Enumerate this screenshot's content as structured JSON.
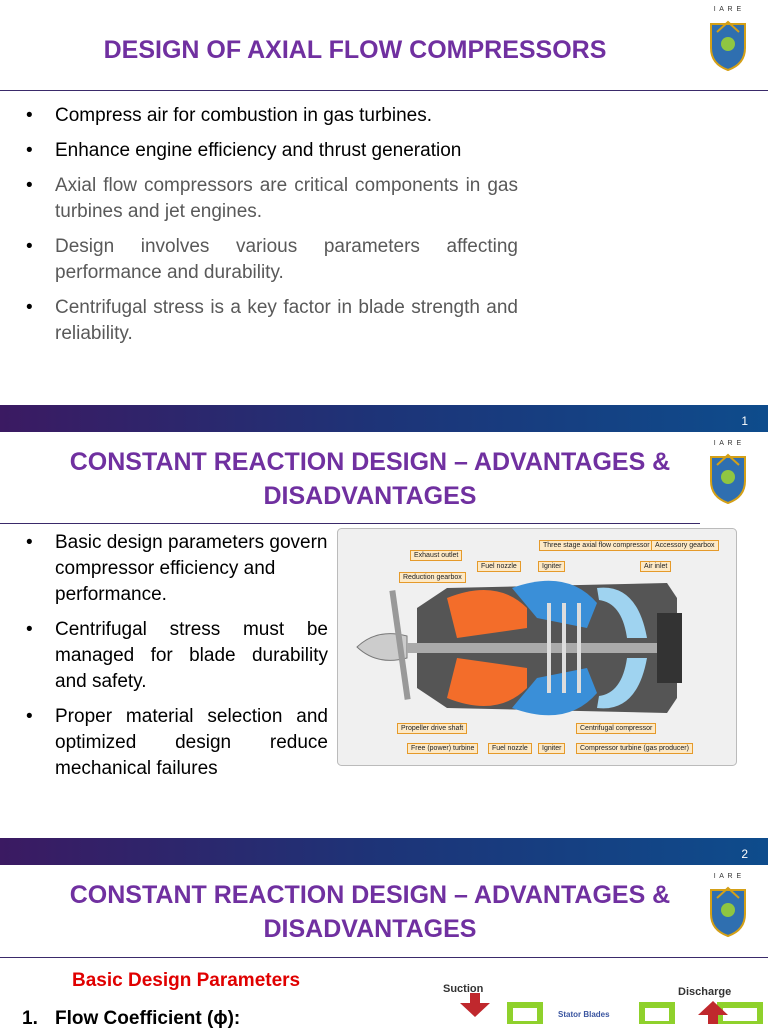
{
  "slides": [
    {
      "title": "DESIGN OF AXIAL FLOW COMPRESSORS",
      "logo": "I A R E",
      "bullets": [
        "Compress air for combustion in gas turbines.",
        "Enhance engine efficiency and thrust generation",
        "Axial flow compressors are critical components in gas turbines and jet engines.",
        "Design involves various parameters affecting performance and durability.",
        "Centrifugal stress is a key factor in blade strength and reliability."
      ],
      "page_number": "1"
    },
    {
      "title": "CONSTANT REACTION DESIGN – ADVANTAGES & DISADVANTAGES",
      "logo": "I A R E",
      "bullets": [
        "Basic design parameters govern compressor efficiency and performance.",
        "Centrifugal stress must be managed for blade durability and safety.",
        "Proper material selection and optimized design reduce mechanical failures"
      ],
      "figure_labels": [
        "Exhaust outlet",
        "Reduction gearbox",
        "Fuel nozzle",
        "Igniter",
        "Three stage axial flow compressor",
        "Accessory gearbox",
        "Air inlet",
        "Propeller drive shaft",
        "Free (power) turbine",
        "Fuel nozzle",
        "Igniter",
        "Centrifugal compressor",
        "Compressor turbine (gas producer)"
      ],
      "page_number": "2"
    },
    {
      "title": "CONSTANT REACTION DESIGN – ADVANTAGES & DISADVANTAGES",
      "logo": "I A R E",
      "section_heading": "Basic Design Parameters",
      "list_number": "1.",
      "list_item": "Flow Coefficient (ϕ):",
      "figure_labels": [
        "Suction",
        "Discharge",
        "Stator Blades"
      ]
    }
  ]
}
